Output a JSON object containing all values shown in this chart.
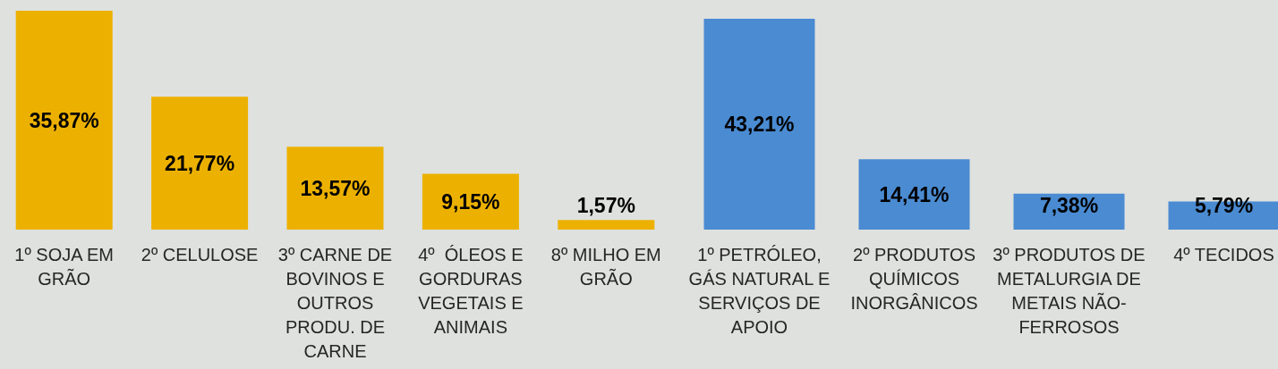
{
  "chart_data": [
    {
      "type": "bar",
      "categories": [
        "1º SOJA EM GRÃO",
        "2º CELULOSE",
        "3º CARNE DE BOVINOS E OUTROS PRODU. DE CARNE",
        "4º  ÓLEOS E GORDURAS VEGETAIS E ANIMAIS",
        "8º MILHO EM GRÃO"
      ],
      "values": [
        35.87,
        21.77,
        13.57,
        9.15,
        1.57
      ],
      "value_labels": [
        "35,87%",
        "21,77%",
        "13,57%",
        "9,15%",
        "1,57%"
      ],
      "color": "#ecb100",
      "tick_labels": "x"
    },
    {
      "type": "bar",
      "categories": [
        "1º PETRÓLEO, GÁS NATURAL E SERVIÇOS DE APOIO",
        "2º PRODUTOS QUÍMICOS INORGÂNICOS",
        "3º PRODUTOS DE METALURGIA DE METAIS NÃO-FERROSOS",
        "4º TECIDOS"
      ],
      "values": [
        43.21,
        14.41,
        7.38,
        5.79
      ],
      "value_labels": [
        "43,21%",
        "14,41%",
        "7,38%",
        "5,79%"
      ],
      "color": "#4a8bd2",
      "tick_labels": "x"
    }
  ]
}
